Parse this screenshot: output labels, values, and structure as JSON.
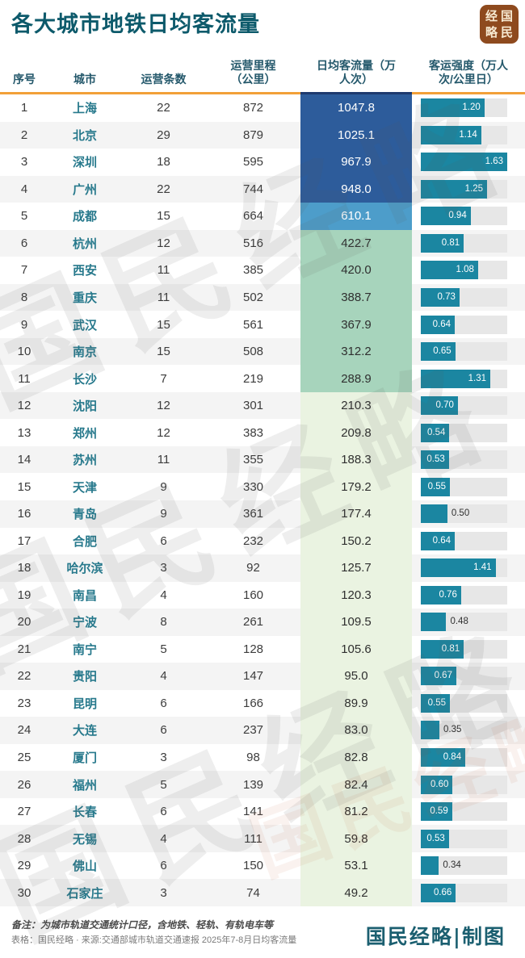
{
  "page": {
    "title": "各大城市地铁日均客流量",
    "logo_chars": [
      "经",
      "国",
      "略",
      "民"
    ],
    "watermark_text": "国民经略",
    "footer": {
      "note1": "备注：为城市轨道交通统计口径，含地铁、轻轨、有轨电车等",
      "note2": "表格：国民经略 · 来源:交通部城市轨道交通速报 2025年7-8月日均客流量",
      "credit": "国民经略|制图"
    }
  },
  "chart_data": {
    "type": "table",
    "title": "各大城市地铁日均客流量",
    "columns": [
      "序号",
      "城市",
      "运营条数",
      "运营里程（公里）",
      "日均客流量（万人次）",
      "客运强度（万人次/公里日）"
    ],
    "header_lines": [
      [
        "序号"
      ],
      [
        "城市"
      ],
      [
        "运营条数"
      ],
      [
        "运营里程",
        "（公里）"
      ],
      [
        "日均客流量（万",
        "人次）"
      ],
      [
        "客运强度（万人",
        "次/公里日）"
      ]
    ],
    "bar_column": "客运强度",
    "bar_max": 1.63,
    "bar_label_outside_at_or_below": 0.5,
    "rows": [
      {
        "seq": 1,
        "city": "上海",
        "lines": 22,
        "km": 872,
        "flow": 1047.8,
        "intensity": 1.2,
        "tier": "dark"
      },
      {
        "seq": 2,
        "city": "北京",
        "lines": 29,
        "km": 879,
        "flow": 1025.1,
        "intensity": 1.14,
        "tier": "dark"
      },
      {
        "seq": 3,
        "city": "深圳",
        "lines": 18,
        "km": 595,
        "flow": 967.9,
        "intensity": 1.63,
        "tier": "dark"
      },
      {
        "seq": 4,
        "city": "广州",
        "lines": 22,
        "km": 744,
        "flow": 948.0,
        "intensity": 1.25,
        "tier": "dark"
      },
      {
        "seq": 5,
        "city": "成都",
        "lines": 15,
        "km": 664,
        "flow": 610.1,
        "intensity": 0.94,
        "tier": "mid"
      },
      {
        "seq": 6,
        "city": "杭州",
        "lines": 12,
        "km": 516,
        "flow": 422.7,
        "intensity": 0.81,
        "tier": "green"
      },
      {
        "seq": 7,
        "city": "西安",
        "lines": 11,
        "km": 385,
        "flow": 420.0,
        "intensity": 1.08,
        "tier": "green"
      },
      {
        "seq": 8,
        "city": "重庆",
        "lines": 11,
        "km": 502,
        "flow": 388.7,
        "intensity": 0.73,
        "tier": "green"
      },
      {
        "seq": 9,
        "city": "武汉",
        "lines": 15,
        "km": 561,
        "flow": 367.9,
        "intensity": 0.64,
        "tier": "green"
      },
      {
        "seq": 10,
        "city": "南京",
        "lines": 15,
        "km": 508,
        "flow": 312.2,
        "intensity": 0.65,
        "tier": "green"
      },
      {
        "seq": 11,
        "city": "长沙",
        "lines": 7,
        "km": 219,
        "flow": 288.9,
        "intensity": 1.31,
        "tier": "green"
      },
      {
        "seq": 12,
        "city": "沈阳",
        "lines": 12,
        "km": 301,
        "flow": 210.3,
        "intensity": 0.7,
        "tier": "pale"
      },
      {
        "seq": 13,
        "city": "郑州",
        "lines": 12,
        "km": 383,
        "flow": 209.8,
        "intensity": 0.54,
        "tier": "pale"
      },
      {
        "seq": 14,
        "city": "苏州",
        "lines": 11,
        "km": 355,
        "flow": 188.3,
        "intensity": 0.53,
        "tier": "pale"
      },
      {
        "seq": 15,
        "city": "天津",
        "lines": 9,
        "km": 330,
        "flow": 179.2,
        "intensity": 0.55,
        "tier": "pale"
      },
      {
        "seq": 16,
        "city": "青岛",
        "lines": 9,
        "km": 361,
        "flow": 177.4,
        "intensity": 0.5,
        "tier": "pale"
      },
      {
        "seq": 17,
        "city": "合肥",
        "lines": 6,
        "km": 232,
        "flow": 150.2,
        "intensity": 0.64,
        "tier": "pale"
      },
      {
        "seq": 18,
        "city": "哈尔滨",
        "lines": 3,
        "km": 92,
        "flow": 125.7,
        "intensity": 1.41,
        "tier": "pale"
      },
      {
        "seq": 19,
        "city": "南昌",
        "lines": 4,
        "km": 160,
        "flow": 120.3,
        "intensity": 0.76,
        "tier": "pale"
      },
      {
        "seq": 20,
        "city": "宁波",
        "lines": 8,
        "km": 261,
        "flow": 109.5,
        "intensity": 0.48,
        "tier": "pale"
      },
      {
        "seq": 21,
        "city": "南宁",
        "lines": 5,
        "km": 128,
        "flow": 105.6,
        "intensity": 0.81,
        "tier": "pale"
      },
      {
        "seq": 22,
        "city": "贵阳",
        "lines": 4,
        "km": 147,
        "flow": 95.0,
        "intensity": 0.67,
        "tier": "pale"
      },
      {
        "seq": 23,
        "city": "昆明",
        "lines": 6,
        "km": 166,
        "flow": 89.9,
        "intensity": 0.55,
        "tier": "pale"
      },
      {
        "seq": 24,
        "city": "大连",
        "lines": 6,
        "km": 237,
        "flow": 83.0,
        "intensity": 0.35,
        "tier": "pale"
      },
      {
        "seq": 25,
        "city": "厦门",
        "lines": 3,
        "km": 98,
        "flow": 82.8,
        "intensity": 0.84,
        "tier": "pale"
      },
      {
        "seq": 26,
        "city": "福州",
        "lines": 5,
        "km": 139,
        "flow": 82.4,
        "intensity": 0.6,
        "tier": "pale"
      },
      {
        "seq": 27,
        "city": "长春",
        "lines": 6,
        "km": 141,
        "flow": 81.2,
        "intensity": 0.59,
        "tier": "pale"
      },
      {
        "seq": 28,
        "city": "无锡",
        "lines": 4,
        "km": 111,
        "flow": 59.8,
        "intensity": 0.53,
        "tier": "pale"
      },
      {
        "seq": 29,
        "city": "佛山",
        "lines": 6,
        "km": 150,
        "flow": 53.1,
        "intensity": 0.34,
        "tier": "pale"
      },
      {
        "seq": 30,
        "city": "石家庄",
        "lines": 3,
        "km": 74,
        "flow": 49.2,
        "intensity": 0.66,
        "tier": "pale"
      }
    ]
  },
  "colors": {
    "title_teal": "#0d5a6b",
    "city_teal": "#27798c",
    "header_text": "#24586b",
    "rule_orange": "#f2a038",
    "rule_navy": "#1e3a6e",
    "flow_dark_blue": "#2d5c9b",
    "flow_mid_blue": "#4d9dca",
    "flow_green": "#a7d4bc",
    "flow_pale_green": "#eaf3e1",
    "bar_teal": "#1b86a1",
    "bar_track_gray": "#e7e7e7",
    "row_stripe": "#f4f4f4",
    "logo_brown": "#8e4a1e",
    "logo_text": "#f7ead2",
    "credit_teal": "#1b5f70"
  }
}
